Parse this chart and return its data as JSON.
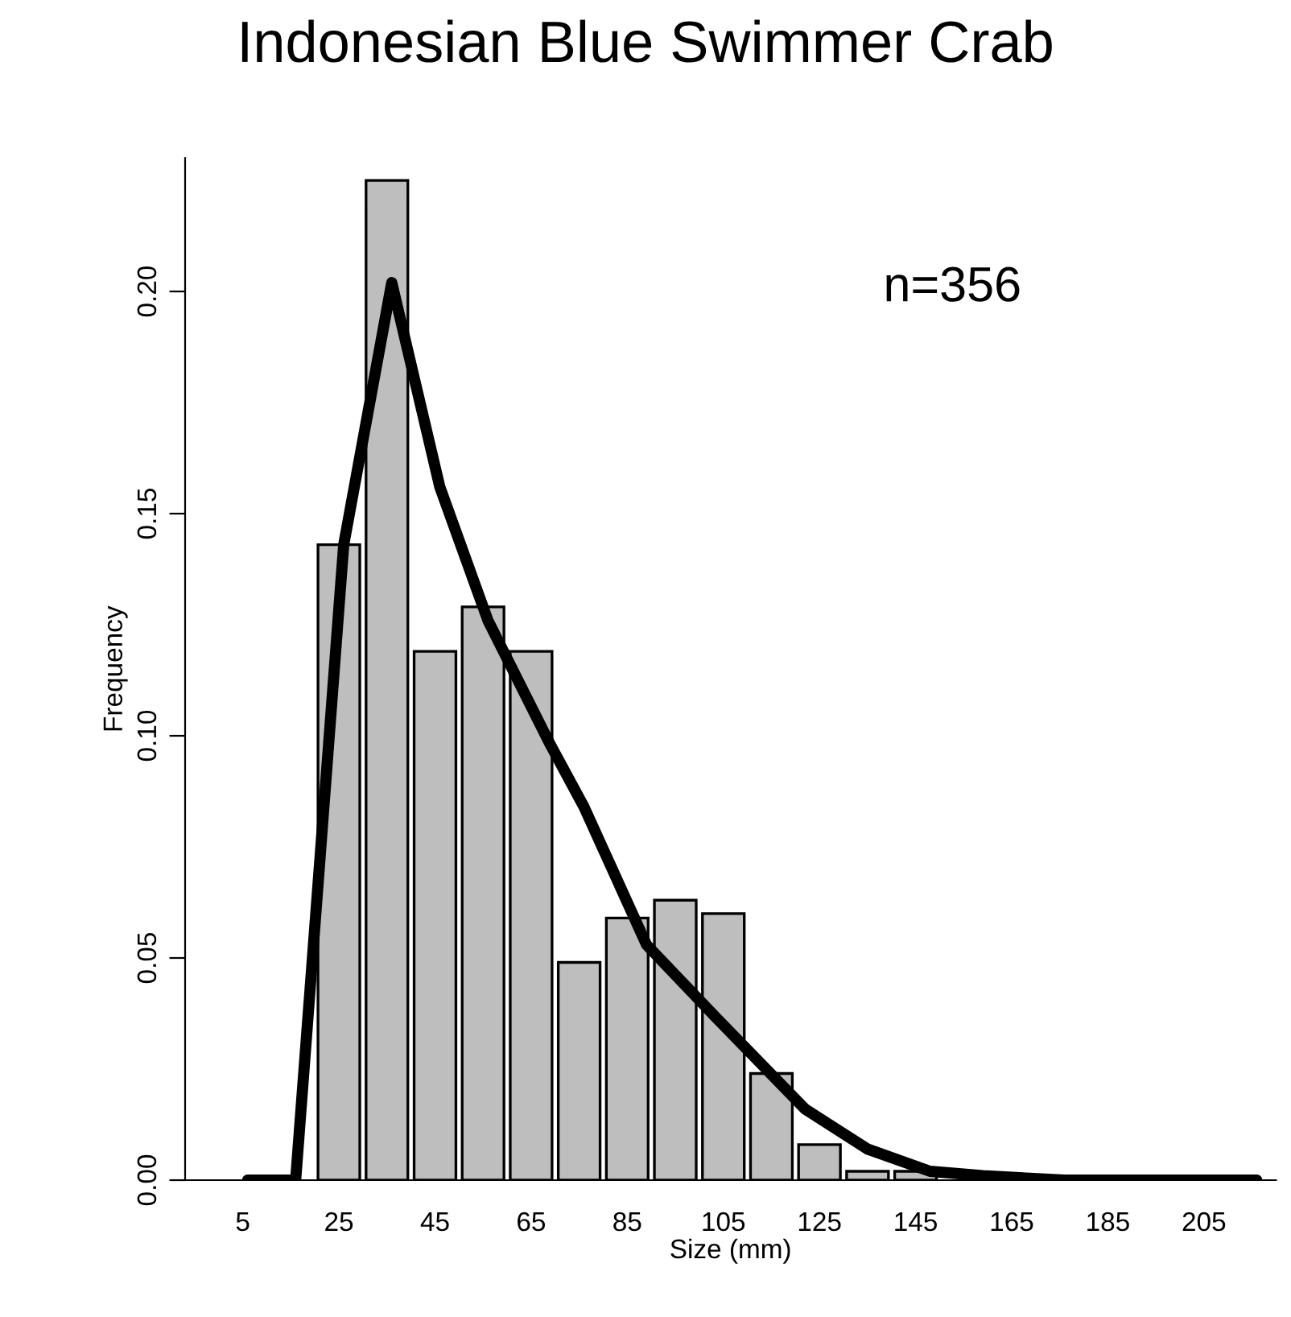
{
  "chart_data": {
    "type": "bar",
    "title": "Indonesian Blue Swimmer Crab",
    "xlabel": "Size (mm)",
    "ylabel": "Frequency",
    "annotations": [
      "n=356"
    ],
    "series": [
      {
        "color": "#bebebe",
        "x": [
          25,
          35,
          45,
          55,
          65,
          75,
          85,
          95,
          105,
          115,
          125,
          135,
          145
        ],
        "values": [
          0.143,
          0.225,
          0.119,
          0.129,
          0.119,
          0.049,
          0.059,
          0.063,
          0.06,
          0.024,
          0.008,
          0.002,
          0.002
        ]
      },
      {
        "type": "line",
        "color": "#000000",
        "x": [
          6,
          16,
          26,
          36,
          46,
          56,
          69,
          76,
          89,
          104,
          122,
          135,
          148,
          159,
          176,
          216
        ],
        "values": [
          0,
          0,
          0.143,
          0.202,
          0.156,
          0.126,
          0.098,
          0.084,
          0.053,
          0.036,
          0.016,
          0.007,
          0.002,
          0.001,
          0,
          0
        ]
      }
    ],
    "xlim": [
      -7,
      220
    ],
    "ylim": [
      0,
      0.23
    ],
    "xticks": [
      5,
      25,
      45,
      65,
      85,
      105,
      125,
      145,
      165,
      185,
      205
    ],
    "yticks": [
      {
        "value": 0,
        "label": "0.00"
      },
      {
        "value": 0.05,
        "label": "0.05"
      },
      {
        "value": 0.1,
        "label": "0.10"
      },
      {
        "value": 0.15,
        "label": "0.15"
      },
      {
        "value": 0.2,
        "label": "0.20"
      }
    ],
    "grid": false,
    "legend": false
  }
}
